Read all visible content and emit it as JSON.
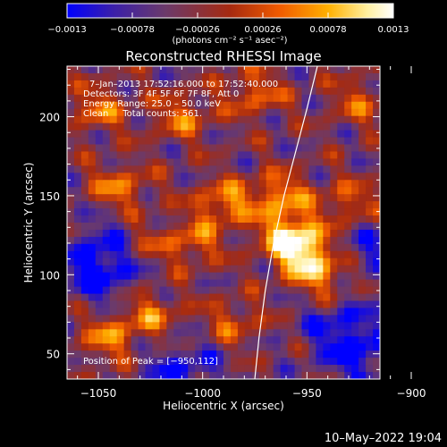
{
  "chart_data": {
    "type": "heatmap",
    "title": "Reconstructed RHESSI Image",
    "xlabel": "Heliocentric X (arcsec)",
    "ylabel": "Heliocentric Y (arcsec)",
    "xlim": [
      -1065,
      -915
    ],
    "ylim": [
      34,
      232
    ],
    "xticks": [
      -1050,
      -1000,
      -950,
      -900
    ],
    "xtick_labels": [
      "−1050",
      "−1000",
      "−950",
      "−900"
    ],
    "yticks": [
      50,
      100,
      150,
      200
    ],
    "ytick_labels": [
      "50",
      "100",
      "150",
      "200"
    ],
    "colorbar": {
      "min": -0.0013,
      "max": 0.0013,
      "ticks": [
        -0.0013,
        -0.00078,
        -0.00026,
        0.00026,
        0.00078,
        0.0013
      ],
      "tick_labels": [
        "−0.0013",
        "−0.00078",
        "−0.00026",
        "0.00026",
        "0.00078",
        "0.0013"
      ],
      "units": "(photons cm⁻² s⁻¹ asec⁻²)",
      "colors": [
        "#0000ff",
        "#3a1faa",
        "#6b3a6b",
        "#a62a10",
        "#f05a00",
        "#ffb000",
        "#fff0a0",
        "#ffffff"
      ]
    },
    "annotations": [
      "7–Jan–2013 17:52:16.000 to 17:52:40.000",
      "Detectors: 3F 4F 5F 6F 7F 8F, Att 0",
      "Energy Range: 25.0 – 50.0 keV",
      "Clean     Total counts: 561."
    ],
    "peak_label": "Position of Peak = [−950,112]",
    "peak": [
      -950,
      112
    ],
    "limb": [
      [
        -975,
        34
      ],
      [
        -973,
        60
      ],
      [
        -970,
        90
      ],
      [
        -966,
        120
      ],
      [
        -961,
        150
      ],
      [
        -955,
        180
      ],
      [
        -950,
        205
      ],
      [
        -945,
        232
      ]
    ],
    "hotspots": [
      {
        "x": -958,
        "y": 125,
        "amp": 1.0
      },
      {
        "x": -950,
        "y": 110,
        "amp": 0.95
      },
      {
        "x": -963,
        "y": 150,
        "amp": 0.7
      },
      {
        "x": -990,
        "y": 145,
        "amp": 0.7
      },
      {
        "x": -1040,
        "y": 155,
        "amp": 0.6
      },
      {
        "x": -1005,
        "y": 120,
        "amp": 0.55
      },
      {
        "x": -1010,
        "y": 200,
        "amp": 0.55
      },
      {
        "x": -1050,
        "y": 205,
        "amp": 0.55
      },
      {
        "x": -1025,
        "y": 75,
        "amp": 0.55
      },
      {
        "x": -1045,
        "y": 60,
        "amp": 0.6
      },
      {
        "x": -985,
        "y": 70,
        "amp": 0.45
      },
      {
        "x": -930,
        "y": 145,
        "amp": 0.5
      },
      {
        "x": -925,
        "y": 210,
        "amp": 0.45
      },
      {
        "x": -975,
        "y": 215,
        "amp": 0.55
      },
      {
        "x": -940,
        "y": 95,
        "amp": 0.45
      },
      {
        "x": -1030,
        "y": 120,
        "amp": 0.4
      }
    ],
    "coldspots": [
      {
        "x": -1050,
        "y": 100,
        "amp": 0.85
      },
      {
        "x": -1045,
        "y": 120,
        "amp": 0.6
      },
      {
        "x": -925,
        "y": 50,
        "amp": 0.8
      },
      {
        "x": -935,
        "y": 70,
        "amp": 0.6
      },
      {
        "x": -1010,
        "y": 40,
        "amp": 0.7
      },
      {
        "x": -920,
        "y": 115,
        "amp": 0.55
      }
    ]
  },
  "footer": {
    "date": "10–May–2022 19:04"
  }
}
